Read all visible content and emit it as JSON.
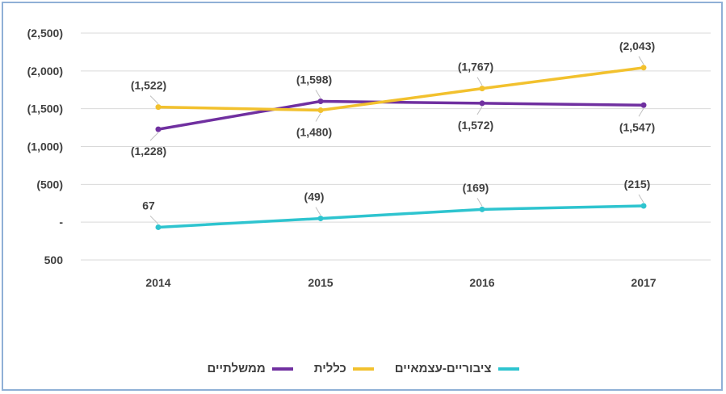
{
  "colors": {
    "governmental": "#7030a0",
    "general": "#f2c12e",
    "public_independent": "#2ec4cf",
    "grid": "#d9d9d9",
    "frame": "#8fb0d6"
  },
  "chart_data": {
    "type": "line",
    "categories": [
      "2014",
      "2015",
      "2016",
      "2017"
    ],
    "y_tick_labels": [
      "(2,500)",
      "(2,000)",
      "(1,500)",
      "(1,000)",
      "(500)",
      "-",
      "500"
    ],
    "y_tick_values": [
      -2500,
      -2000,
      -1500,
      -1000,
      -500,
      0,
      500
    ],
    "ylim": [
      -2500,
      500
    ],
    "y_axis_reversed": true,
    "grid": "horizontal",
    "legend_position": "bottom",
    "series": [
      {
        "key": "governmental",
        "name": "ממשלתיים",
        "values": [
          -1228,
          -1598,
          -1572,
          -1547
        ],
        "labels": [
          "(1,228)",
          "(1,598)",
          "(1,572)",
          "(1,547)"
        ],
        "label_side": [
          "below",
          "above",
          "below",
          "below"
        ]
      },
      {
        "key": "general",
        "name": "כללית",
        "values": [
          -1522,
          -1480,
          -1767,
          -2043
        ],
        "labels": [
          "(1,522)",
          "(1,480)",
          "(1,767)",
          "(2,043)"
        ],
        "label_side": [
          "above",
          "below",
          "above",
          "above"
        ]
      },
      {
        "key": "public_independent",
        "name": "ציבוריים-עצמאיים",
        "values": [
          67,
          -49,
          -169,
          -215
        ],
        "labels": [
          "67",
          "(49)",
          "(169)",
          "(215)"
        ],
        "label_side": [
          "above",
          "above",
          "above",
          "above"
        ]
      }
    ]
  },
  "legend": {
    "items": [
      {
        "key": "governmental",
        "label": "ממשלתיים"
      },
      {
        "key": "general",
        "label": "כללית"
      },
      {
        "key": "public_independent",
        "label": "ציבוריים-עצמאיים"
      }
    ]
  }
}
